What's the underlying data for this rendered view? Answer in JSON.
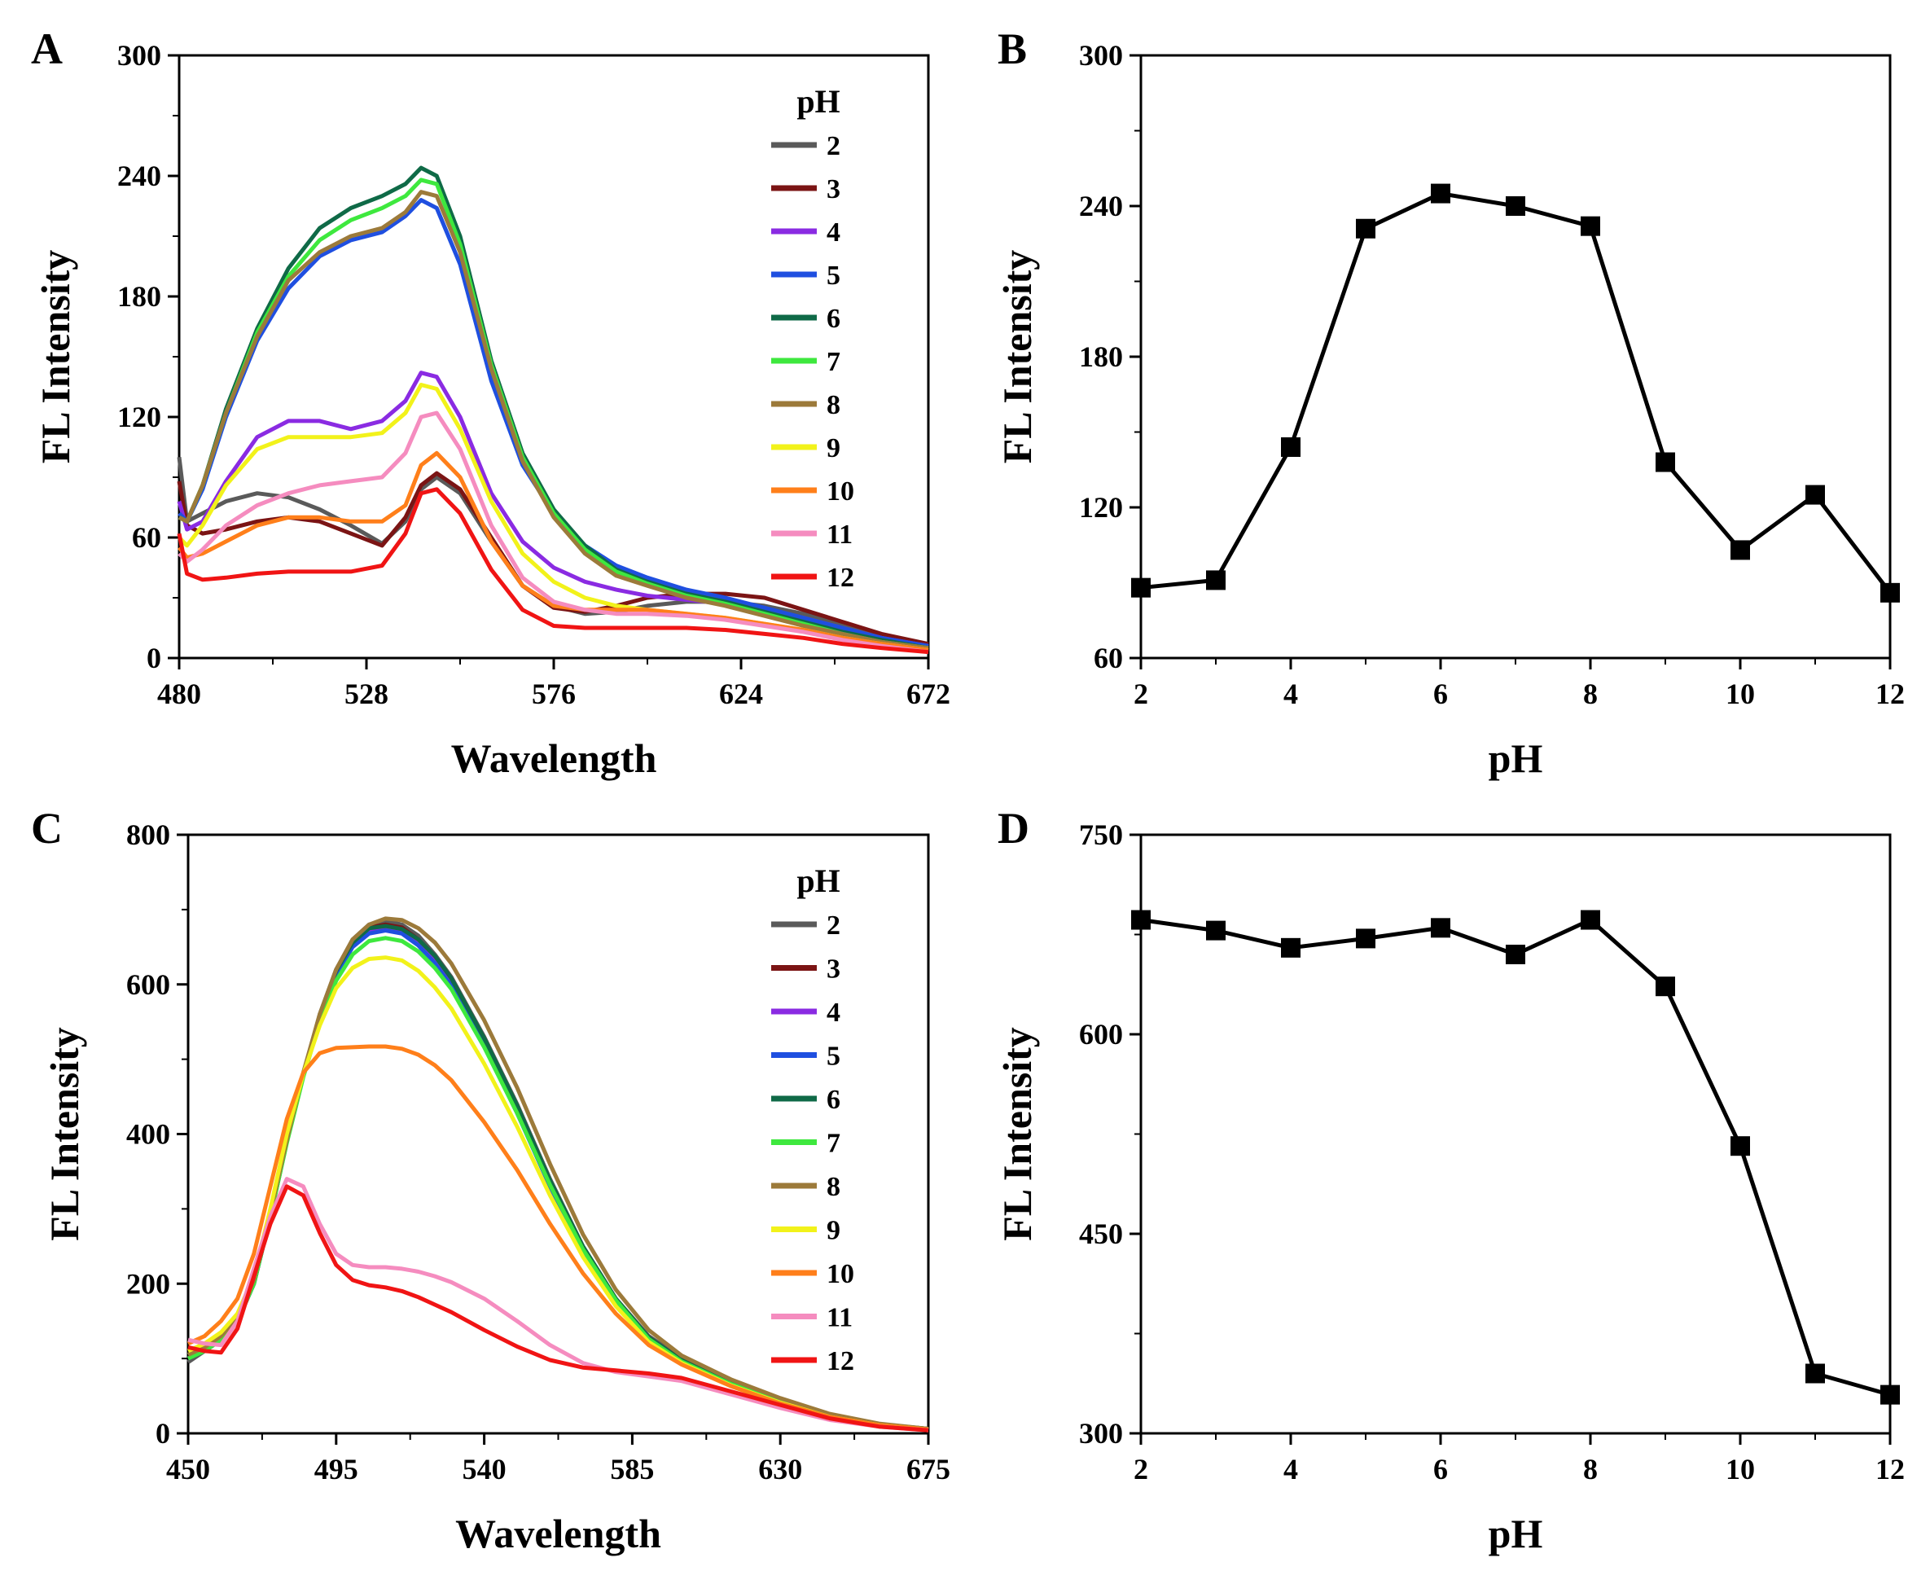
{
  "chart_data": [
    {
      "panel": "A",
      "type": "line",
      "xlabel": "Wavelength",
      "ylabel": "FL Intensity",
      "xlim": [
        480,
        672
      ],
      "ylim": [
        0,
        300
      ],
      "xticks": [
        480,
        528,
        576,
        624,
        672
      ],
      "yticks": [
        0,
        60,
        120,
        180,
        240,
        300
      ],
      "legend_title": "pH",
      "legend_position": "top-right",
      "x": [
        480,
        482,
        486,
        492,
        500,
        508,
        516,
        524,
        532,
        538,
        542,
        546,
        552,
        560,
        568,
        576,
        584,
        592,
        600,
        610,
        620,
        630,
        640,
        650,
        660,
        672
      ],
      "series": [
        {
          "name": "2",
          "color": "#5a5a5a",
          "values": [
            100,
            68,
            72,
            78,
            82,
            80,
            74,
            66,
            57,
            68,
            84,
            90,
            82,
            58,
            36,
            26,
            22,
            23,
            26,
            28,
            28,
            26,
            22,
            16,
            10,
            6
          ]
        },
        {
          "name": "3",
          "color": "#7b1414",
          "values": [
            88,
            66,
            62,
            64,
            68,
            70,
            68,
            62,
            56,
            70,
            86,
            92,
            84,
            60,
            36,
            25,
            23,
            26,
            30,
            32,
            32,
            30,
            24,
            18,
            12,
            7
          ]
        },
        {
          "name": "4",
          "color": "#8a2be2",
          "values": [
            78,
            64,
            68,
            88,
            110,
            118,
            118,
            114,
            118,
            128,
            142,
            140,
            120,
            82,
            58,
            45,
            38,
            34,
            31,
            29,
            27,
            24,
            20,
            15,
            10,
            6
          ]
        },
        {
          "name": "5",
          "color": "#1f4fe0",
          "values": [
            72,
            68,
            84,
            120,
            158,
            184,
            200,
            208,
            212,
            220,
            228,
            224,
            196,
            138,
            96,
            72,
            56,
            46,
            40,
            34,
            30,
            25,
            20,
            15,
            10,
            6
          ]
        },
        {
          "name": "6",
          "color": "#0f6a47",
          "values": [
            70,
            68,
            86,
            124,
            164,
            194,
            214,
            224,
            230,
            236,
            244,
            240,
            210,
            148,
            102,
            74,
            56,
            44,
            38,
            32,
            28,
            23,
            18,
            13,
            9,
            5
          ]
        },
        {
          "name": "7",
          "color": "#3ee83e",
          "values": [
            70,
            68,
            86,
            122,
            162,
            190,
            208,
            218,
            224,
            230,
            238,
            236,
            206,
            146,
            100,
            72,
            54,
            43,
            37,
            31,
            27,
            22,
            17,
            12,
            8,
            5
          ]
        },
        {
          "name": "8",
          "color": "#9c7a3a",
          "values": [
            70,
            68,
            86,
            122,
            160,
            188,
            202,
            210,
            214,
            222,
            232,
            230,
            202,
            144,
            98,
            70,
            52,
            41,
            36,
            30,
            26,
            21,
            16,
            12,
            8,
            5
          ]
        },
        {
          "name": "9",
          "color": "#f2f21a",
          "values": [
            60,
            56,
            66,
            86,
            104,
            110,
            110,
            110,
            112,
            122,
            136,
            134,
            114,
            78,
            52,
            38,
            30,
            26,
            24,
            22,
            20,
            17,
            14,
            10,
            7,
            4
          ]
        },
        {
          "name": "10",
          "color": "#ff7f1a",
          "values": [
            55,
            50,
            52,
            58,
            66,
            70,
            70,
            68,
            68,
            76,
            96,
            102,
            90,
            58,
            36,
            26,
            24,
            24,
            24,
            22,
            20,
            17,
            14,
            10,
            7,
            4
          ]
        },
        {
          "name": "11",
          "color": "#f58cbf",
          "values": [
            52,
            48,
            54,
            66,
            76,
            82,
            86,
            88,
            90,
            102,
            120,
            122,
            104,
            66,
            40,
            28,
            24,
            22,
            22,
            21,
            19,
            16,
            13,
            9,
            6,
            3
          ]
        },
        {
          "name": "12",
          "color": "#f01414",
          "values": [
            62,
            42,
            39,
            40,
            42,
            43,
            43,
            43,
            46,
            62,
            82,
            84,
            72,
            44,
            24,
            16,
            15,
            15,
            15,
            15,
            14,
            12,
            10,
            7,
            5,
            3
          ]
        }
      ]
    },
    {
      "panel": "B",
      "type": "line",
      "marker": "square",
      "xlabel": "pH",
      "ylabel": "FL Intensity",
      "xlim": [
        2,
        12
      ],
      "ylim": [
        60,
        300
      ],
      "xticks": [
        2,
        4,
        6,
        8,
        10,
        12
      ],
      "yticks": [
        60,
        120,
        180,
        240,
        300
      ],
      "x": [
        2,
        3,
        4,
        5,
        6,
        7,
        8,
        9,
        10,
        11,
        12
      ],
      "values": [
        88,
        91,
        144,
        231,
        245,
        240,
        232,
        138,
        103,
        125,
        86
      ]
    },
    {
      "panel": "C",
      "type": "line",
      "xlabel": "Wavelength",
      "ylabel": "FL Intensity",
      "xlim": [
        450,
        675
      ],
      "ylim": [
        0,
        800
      ],
      "xticks": [
        450,
        495,
        540,
        585,
        630,
        675
      ],
      "yticks": [
        0,
        200,
        400,
        600,
        800
      ],
      "legend_title": "pH",
      "legend_position": "top-right",
      "x": [
        450,
        455,
        460,
        465,
        470,
        475,
        480,
        485,
        490,
        495,
        500,
        505,
        510,
        515,
        520,
        525,
        530,
        540,
        550,
        560,
        570,
        580,
        590,
        600,
        615,
        630,
        645,
        660,
        675
      ],
      "series": [
        {
          "name": "2",
          "color": "#5a5a5a",
          "values": [
            95,
            110,
            125,
            150,
            200,
            290,
            390,
            480,
            560,
            620,
            660,
            680,
            685,
            680,
            665,
            640,
            610,
            530,
            440,
            340,
            250,
            180,
            130,
            100,
            70,
            45,
            25,
            12,
            6
          ]
        },
        {
          "name": "3",
          "color": "#7b1414",
          "values": [
            100,
            110,
            125,
            150,
            200,
            290,
            390,
            480,
            558,
            618,
            656,
            676,
            680,
            676,
            660,
            636,
            606,
            526,
            436,
            336,
            248,
            178,
            128,
            98,
            68,
            44,
            24,
            12,
            6
          ]
        },
        {
          "name": "4",
          "color": "#8a2be2",
          "values": [
            100,
            110,
            125,
            150,
            200,
            290,
            390,
            478,
            556,
            614,
            652,
            670,
            674,
            670,
            654,
            630,
            600,
            520,
            430,
            332,
            245,
            176,
            126,
            96,
            66,
            42,
            23,
            11,
            5
          ]
        },
        {
          "name": "5",
          "color": "#1f4fe0",
          "values": [
            100,
            110,
            125,
            150,
            200,
            290,
            390,
            478,
            555,
            612,
            650,
            668,
            672,
            668,
            652,
            628,
            598,
            518,
            428,
            330,
            244,
            175,
            125,
            95,
            65,
            42,
            23,
            11,
            5
          ]
        },
        {
          "name": "6",
          "color": "#0f6a47",
          "values": [
            100,
            110,
            125,
            150,
            200,
            290,
            390,
            480,
            558,
            618,
            656,
            675,
            678,
            674,
            660,
            638,
            608,
            528,
            438,
            338,
            250,
            180,
            128,
            98,
            67,
            43,
            24,
            12,
            6
          ]
        },
        {
          "name": "7",
          "color": "#3ee83e",
          "values": [
            100,
            110,
            125,
            150,
            200,
            290,
            388,
            476,
            550,
            605,
            640,
            658,
            662,
            658,
            644,
            622,
            594,
            516,
            428,
            332,
            246,
            178,
            126,
            96,
            66,
            42,
            23,
            11,
            5
          ]
        },
        {
          "name": "8",
          "color": "#9c7a3a",
          "values": [
            105,
            115,
            130,
            155,
            205,
            295,
            392,
            482,
            560,
            620,
            660,
            680,
            688,
            686,
            675,
            656,
            628,
            552,
            462,
            360,
            266,
            192,
            138,
            104,
            72,
            47,
            26,
            13,
            6
          ]
        },
        {
          "name": "9",
          "color": "#f2f21a",
          "values": [
            110,
            120,
            135,
            160,
            210,
            300,
            400,
            480,
            545,
            595,
            622,
            634,
            636,
            632,
            618,
            596,
            568,
            494,
            410,
            318,
            236,
            170,
            122,
            94,
            64,
            41,
            22,
            11,
            5
          ]
        },
        {
          "name": "10",
          "color": "#ff7f1a",
          "values": [
            120,
            130,
            150,
            180,
            240,
            330,
            420,
            482,
            508,
            515,
            516,
            517,
            517,
            514,
            506,
            492,
            472,
            416,
            352,
            280,
            214,
            160,
            118,
            92,
            63,
            40,
            22,
            11,
            5
          ]
        },
        {
          "name": "11",
          "color": "#f58cbf",
          "values": [
            125,
            120,
            118,
            150,
            220,
            290,
            340,
            330,
            280,
            240,
            225,
            222,
            222,
            220,
            216,
            210,
            202,
            180,
            150,
            118,
            94,
            82,
            76,
            70,
            52,
            34,
            18,
            9,
            4
          ]
        },
        {
          "name": "12",
          "color": "#f01414",
          "values": [
            115,
            110,
            108,
            140,
            210,
            280,
            330,
            318,
            268,
            225,
            205,
            198,
            195,
            190,
            182,
            172,
            162,
            138,
            116,
            98,
            88,
            84,
            80,
            74,
            56,
            38,
            20,
            9,
            4
          ]
        }
      ]
    },
    {
      "panel": "D",
      "type": "line",
      "marker": "square",
      "xlabel": "pH",
      "ylabel": "FL Intensity",
      "xlim": [
        2,
        12
      ],
      "ylim": [
        300,
        750
      ],
      "xticks": [
        2,
        4,
        6,
        8,
        10,
        12
      ],
      "yticks": [
        300,
        450,
        600,
        750
      ],
      "x": [
        2,
        3,
        4,
        5,
        6,
        7,
        8,
        9,
        10,
        11,
        12
      ],
      "values": [
        686,
        678,
        665,
        672,
        680,
        660,
        686,
        636,
        516,
        345,
        329
      ]
    }
  ]
}
